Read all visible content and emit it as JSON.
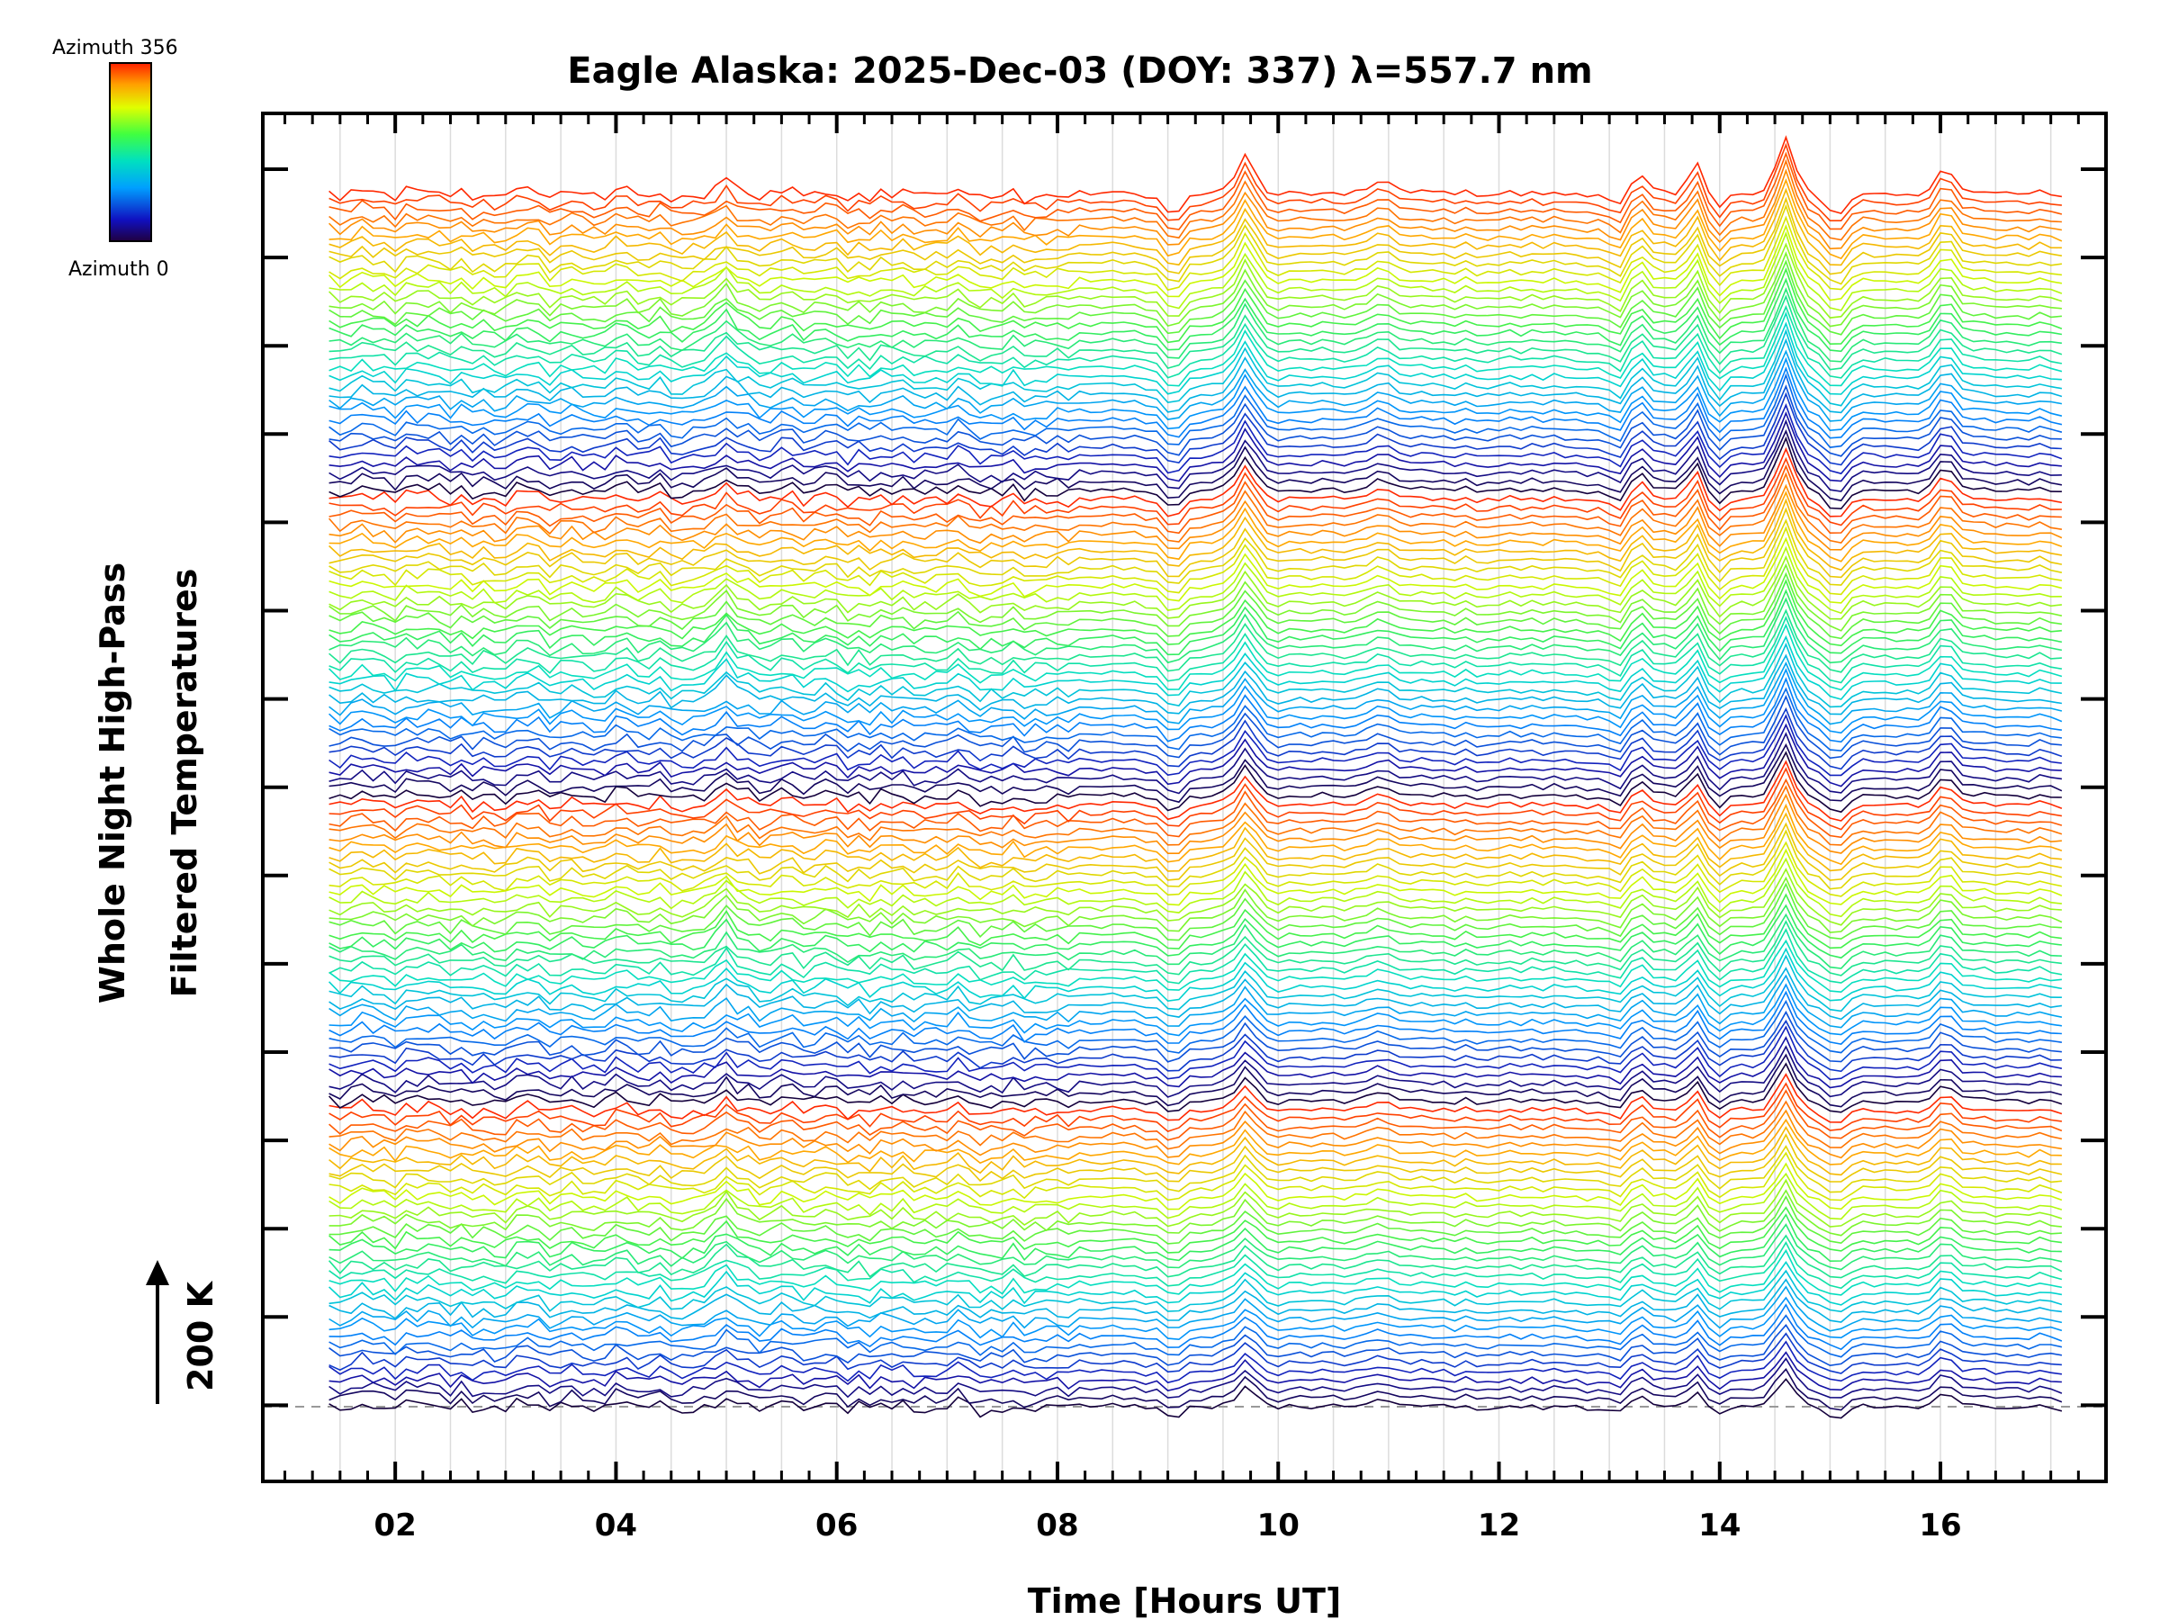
{
  "chart_data": {
    "type": "line",
    "title": "Eagle Alaska: 2025-Dec-03 (DOY: 337) λ=557.7 nm",
    "xlabel": "Time [Hours UT]",
    "ylabel_line1": "Whole Night High-Pass",
    "ylabel_line2": "Filtered Temperatures",
    "scale_label": "200 K",
    "xlim": [
      0.8,
      17.5
    ],
    "x_ticks": [
      2,
      4,
      6,
      8,
      10,
      12,
      14,
      16
    ],
    "x_tick_labels": [
      "02",
      "04",
      "06",
      "08",
      "10",
      "12",
      "14",
      "16"
    ],
    "x_range": [
      1.4,
      17.1
    ],
    "colorbar": {
      "top_label": "Azimuth 356",
      "bottom_label": "Azimuth 0",
      "min": 0,
      "max": 356
    },
    "series_count": 140,
    "series_cycle": 35,
    "grid": "vertical",
    "baseline_dashed": true,
    "events": [
      {
        "t": 9.05,
        "amp": -9
      },
      {
        "t": 9.7,
        "amp": 16
      },
      {
        "t": 10.95,
        "amp": 6
      },
      {
        "t": 13.1,
        "amp": -7
      },
      {
        "t": 13.25,
        "amp": 8
      },
      {
        "t": 13.8,
        "amp": 14
      },
      {
        "t": 13.95,
        "amp": -8
      },
      {
        "t": 14.6,
        "amp": 24
      },
      {
        "t": 15.05,
        "amp": -10
      },
      {
        "t": 16.05,
        "amp": 10
      }
    ]
  }
}
